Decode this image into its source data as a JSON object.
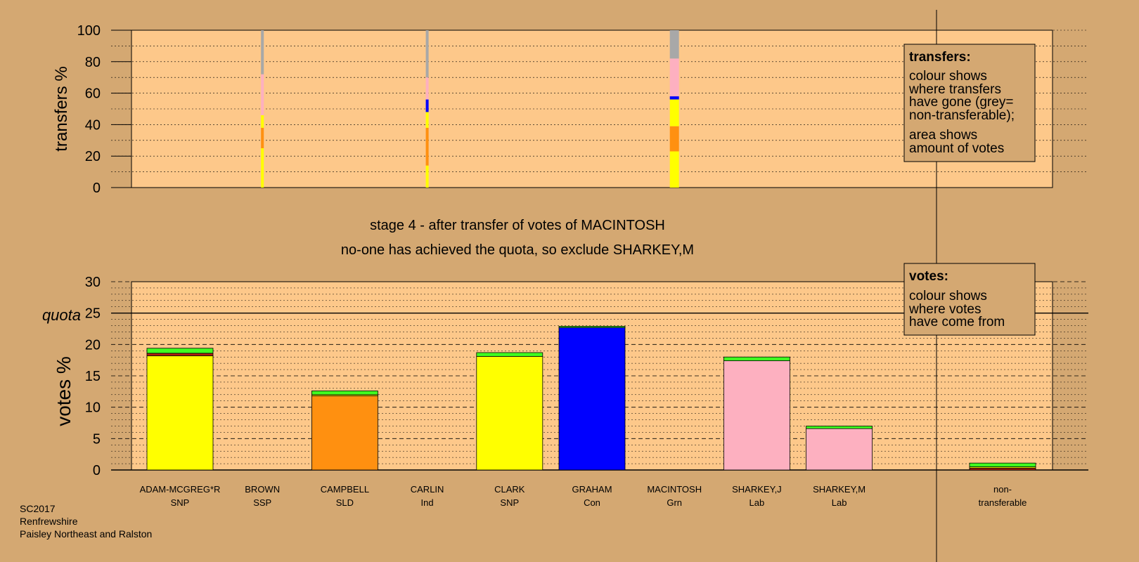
{
  "colors": {
    "background": "#d4a872",
    "plot_bg": "#fdc88a",
    "snp": "#ffff00",
    "sld": "#ff9010",
    "con": "#0000ff",
    "lab": "#fdb0c0",
    "grn_new": "#40ff20",
    "ssp": "#b02010",
    "nontransferable": "#a8a8a8"
  },
  "stage_title": "stage 4 - after transfer of votes of MACINTOSH",
  "stage_note": "no-one has achieved the quota, so exclude SHARKEY,M",
  "footer": [
    "SC2017",
    "Renfrewshire",
    "Paisley Northeast and Ralston"
  ],
  "transfers_legend": {
    "title": "transfers:",
    "lines1": [
      "colour shows",
      "where transfers",
      "have gone (grey=",
      "non-transferable);"
    ],
    "lines2": [
      "area shows",
      "amount of votes"
    ]
  },
  "votes_legend": {
    "title": "votes:",
    "lines": [
      "colour shows",
      "where votes",
      "have come from"
    ]
  },
  "chart_data": [
    {
      "type": "bar",
      "ylabel": "transfers %",
      "ylim": [
        0,
        100
      ],
      "yticks": [
        "0",
        "20",
        "40",
        "60",
        "80",
        "100"
      ],
      "grid": true,
      "stacked_columns": [
        {
          "candidate": "BROWN",
          "segments": [
            {
              "color": "snp",
              "from": 0,
              "to": 25
            },
            {
              "color": "sld",
              "from": 25,
              "to": 38
            },
            {
              "color": "snp",
              "from": 38,
              "to": 46
            },
            {
              "color": "lab",
              "from": 46,
              "to": 72
            },
            {
              "color": "nontransferable",
              "from": 72,
              "to": 100
            }
          ]
        },
        {
          "candidate": "CARLIN",
          "segments": [
            {
              "color": "snp",
              "from": 0,
              "to": 14
            },
            {
              "color": "sld",
              "from": 14,
              "to": 38
            },
            {
              "color": "snp",
              "from": 38,
              "to": 48
            },
            {
              "color": "con",
              "from": 48,
              "to": 56
            },
            {
              "color": "lab",
              "from": 56,
              "to": 70
            },
            {
              "color": "nontransferable",
              "from": 70,
              "to": 100
            }
          ]
        },
        {
          "candidate": "MACINTOSH",
          "segments": [
            {
              "color": "snp",
              "from": 0,
              "to": 23
            },
            {
              "color": "sld",
              "from": 23,
              "to": 39
            },
            {
              "color": "snp",
              "from": 39,
              "to": 56
            },
            {
              "color": "con",
              "from": 56,
              "to": 58
            },
            {
              "color": "lab",
              "from": 58,
              "to": 82
            },
            {
              "color": "nontransferable",
              "from": 82,
              "to": 100
            }
          ]
        }
      ]
    },
    {
      "type": "bar",
      "ylabel": "votes %",
      "quota_label": "quota",
      "quota": 25,
      "ylim": [
        0,
        30
      ],
      "yticks": [
        "0",
        "5",
        "10",
        "15",
        "20",
        "25",
        "30"
      ],
      "grid": true,
      "categories": [
        {
          "name": "ADAM-MCGREG*R",
          "party": "SNP"
        },
        {
          "name": "BROWN",
          "party": "SSP"
        },
        {
          "name": "CAMPBELL",
          "party": "SLD"
        },
        {
          "name": "CARLIN",
          "party": "Ind"
        },
        {
          "name": "CLARK",
          "party": "SNP"
        },
        {
          "name": "GRAHAM",
          "party": "Con"
        },
        {
          "name": "MACINTOSH",
          "party": "Grn"
        },
        {
          "name": "SHARKEY,J",
          "party": "Lab"
        },
        {
          "name": "SHARKEY,M",
          "party": "Lab"
        },
        {
          "name": "non-",
          "party": "transferable"
        }
      ],
      "stacks": [
        [
          {
            "color": "snp",
            "value": 18.2
          },
          {
            "color": "ssp",
            "value": 0.4
          },
          {
            "color": "grn_new",
            "value": 0.8
          }
        ],
        [],
        [
          {
            "color": "sld",
            "value": 11.8
          },
          {
            "color": "snp",
            "value": 0.2
          },
          {
            "color": "grn_new",
            "value": 0.6
          }
        ],
        [],
        [
          {
            "color": "snp",
            "value": 18.1
          },
          {
            "color": "grn_new",
            "value": 0.6
          }
        ],
        [
          {
            "color": "con",
            "value": 22.7
          },
          {
            "color": "grn_new",
            "value": 0.2
          }
        ],
        [],
        [
          {
            "color": "lab",
            "value": 17.4
          },
          {
            "color": "grn_new",
            "value": 0.6
          }
        ],
        [
          {
            "color": "lab",
            "value": 6.6
          },
          {
            "color": "grn_new",
            "value": 0.4
          }
        ],
        [
          {
            "color": "ssp",
            "value": 0.3
          },
          {
            "color": "snp",
            "value": 0.2
          },
          {
            "color": "grn_new",
            "value": 0.6
          }
        ]
      ]
    }
  ]
}
